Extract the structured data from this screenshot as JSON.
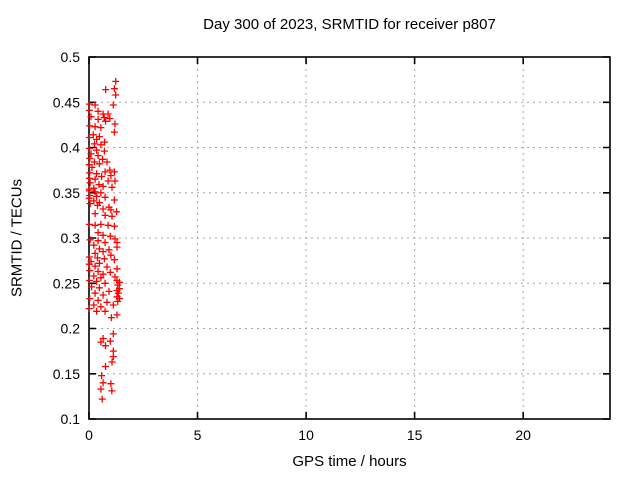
{
  "window": {
    "background": "#ffffff"
  },
  "chart_data": {
    "type": "scatter",
    "title": "Day 300 of 2023, SRMTID for receiver p807",
    "xlabel": "GPS time / hours",
    "ylabel": "SRMTID / TECUs",
    "xlim": [
      0,
      24
    ],
    "ylim": [
      0.1,
      0.5
    ],
    "xticks": {
      "values": [
        0,
        5,
        10,
        15,
        20
      ],
      "labels": [
        "0",
        "5",
        "10",
        "15",
        "20"
      ]
    },
    "yticks": {
      "values": [
        0.1,
        0.15,
        0.2,
        0.25,
        0.3,
        0.35,
        0.4,
        0.45,
        0.5
      ],
      "labels": [
        "0.1",
        "0.15",
        "0.2",
        "0.25",
        "0.3",
        "0.35",
        "0.4",
        "0.45",
        "0.5"
      ]
    },
    "grid": true,
    "legend": "none",
    "marker": {
      "shape": "plus",
      "color": "#ff0000",
      "size": 7
    },
    "grid_color": "#a8a8a8",
    "axis_color": "#000000",
    "series": [
      {
        "name": "SRMTID",
        "points": [
          [
            1.23,
            0.473
          ],
          [
            0.77,
            0.464
          ],
          [
            1.17,
            0.465
          ],
          [
            1.23,
            0.458
          ],
          [
            0.02,
            0.448
          ],
          [
            0.28,
            0.447
          ],
          [
            1.12,
            0.447
          ],
          [
            0.02,
            0.441
          ],
          [
            0.42,
            0.44
          ],
          [
            0.65,
            0.437
          ],
          [
            0.88,
            0.437
          ],
          [
            0.09,
            0.434
          ],
          [
            0.7,
            0.433
          ],
          [
            0.96,
            0.432
          ],
          [
            0.42,
            0.431
          ],
          [
            0.76,
            0.429
          ],
          [
            1.2,
            0.426
          ],
          [
            0.03,
            0.424
          ],
          [
            0.28,
            0.423
          ],
          [
            0.55,
            0.422
          ],
          [
            1.17,
            0.417
          ],
          [
            0.2,
            0.414
          ],
          [
            0.48,
            0.412
          ],
          [
            0.02,
            0.411
          ],
          [
            0.35,
            0.409
          ],
          [
            0.72,
            0.406
          ],
          [
            0.25,
            0.404
          ],
          [
            0.55,
            0.403
          ],
          [
            0.02,
            0.399
          ],
          [
            0.35,
            0.397
          ],
          [
            0.71,
            0.396
          ],
          [
            0.09,
            0.393
          ],
          [
            0.42,
            0.391
          ],
          [
            0.03,
            0.388
          ],
          [
            0.62,
            0.387
          ],
          [
            0.25,
            0.384
          ],
          [
            0.83,
            0.384
          ],
          [
            0.48,
            0.382
          ],
          [
            0.01,
            0.381
          ],
          [
            0.14,
            0.378
          ],
          [
            0.96,
            0.375
          ],
          [
            0.74,
            0.373
          ],
          [
            1.17,
            0.373
          ],
          [
            0.03,
            0.372
          ],
          [
            0.35,
            0.371
          ],
          [
            1.01,
            0.369
          ],
          [
            0.58,
            0.368
          ],
          [
            0.02,
            0.366
          ],
          [
            0.28,
            0.365
          ],
          [
            0.88,
            0.363
          ],
          [
            1.2,
            0.363
          ],
          [
            0.05,
            0.361
          ],
          [
            0.46,
            0.359
          ],
          [
            0.65,
            0.357
          ],
          [
            1.06,
            0.356
          ],
          [
            0.22,
            0.355
          ],
          [
            0.01,
            0.354
          ],
          [
            0.02,
            0.352
          ],
          [
            0.28,
            0.351
          ],
          [
            0.55,
            0.35
          ],
          [
            0.03,
            0.347
          ],
          [
            0.35,
            0.346
          ],
          [
            0.01,
            0.344
          ],
          [
            0.74,
            0.345
          ],
          [
            1.17,
            0.342
          ],
          [
            0.22,
            0.341
          ],
          [
            0.48,
            0.339
          ],
          [
            0.05,
            0.338
          ],
          [
            0.39,
            0.336
          ],
          [
            0.92,
            0.334
          ],
          [
            0.65,
            0.332
          ],
          [
            1.01,
            0.331
          ],
          [
            1.27,
            0.329
          ],
          [
            0.28,
            0.327
          ],
          [
            0.74,
            0.325
          ],
          [
            1.06,
            0.324
          ],
          [
            0.02,
            0.315
          ],
          [
            0.28,
            0.314
          ],
          [
            0.55,
            0.315
          ],
          [
            0.88,
            0.314
          ],
          [
            1.17,
            0.313
          ],
          [
            0.42,
            0.306
          ],
          [
            0.65,
            0.303
          ],
          [
            0.98,
            0.302
          ],
          [
            1.2,
            0.299
          ],
          [
            0.05,
            0.298
          ],
          [
            0.42,
            0.297
          ],
          [
            0.74,
            0.295
          ],
          [
            1.29,
            0.295
          ],
          [
            0.22,
            0.292
          ],
          [
            1.29,
            0.29
          ],
          [
            0.48,
            0.288
          ],
          [
            0.92,
            0.287
          ],
          [
            0.65,
            0.285
          ],
          [
            0.28,
            0.283
          ],
          [
            1.01,
            0.281
          ],
          [
            0.02,
            0.279
          ],
          [
            0.39,
            0.278
          ],
          [
            0.71,
            0.277
          ],
          [
            1.17,
            0.276
          ],
          [
            0.09,
            0.274
          ],
          [
            0.48,
            0.272
          ],
          [
            0.01,
            0.271
          ],
          [
            0.28,
            0.269
          ],
          [
            0.83,
            0.268
          ],
          [
            1.29,
            0.266
          ],
          [
            0.03,
            0.264
          ],
          [
            0.42,
            0.263
          ],
          [
            0.98,
            0.262
          ],
          [
            0.65,
            0.26
          ],
          [
            0.22,
            0.258
          ],
          [
            1.2,
            0.257
          ],
          [
            0.55,
            0.256
          ],
          [
            0.02,
            0.253
          ],
          [
            0.35,
            0.252
          ],
          [
            1.29,
            0.253
          ],
          [
            1.4,
            0.251
          ],
          [
            0.74,
            0.25
          ],
          [
            1.32,
            0.248
          ],
          [
            0.12,
            0.246
          ],
          [
            0.48,
            0.245
          ],
          [
            1.4,
            0.244
          ],
          [
            1.29,
            0.242
          ],
          [
            0.92,
            0.241
          ],
          [
            0.28,
            0.239
          ],
          [
            1.35,
            0.239
          ],
          [
            0.65,
            0.237
          ],
          [
            1.29,
            0.235
          ],
          [
            0.03,
            0.233
          ],
          [
            1.4,
            0.233
          ],
          [
            0.42,
            0.231
          ],
          [
            1.32,
            0.23
          ],
          [
            0.83,
            0.229
          ],
          [
            0.22,
            0.226
          ],
          [
            1.12,
            0.226
          ],
          [
            0.55,
            0.224
          ],
          [
            0.01,
            0.222
          ],
          [
            0.35,
            0.219
          ],
          [
            0.74,
            0.219
          ],
          [
            1.29,
            0.215
          ],
          [
            1.03,
            0.212
          ],
          [
            1.12,
            0.194
          ],
          [
            0.65,
            0.189
          ],
          [
            0.98,
            0.186
          ],
          [
            0.55,
            0.185
          ],
          [
            0.76,
            0.181
          ],
          [
            1.12,
            0.175
          ],
          [
            1.12,
            0.169
          ],
          [
            1.06,
            0.163
          ],
          [
            0.76,
            0.158
          ],
          [
            0.58,
            0.148
          ],
          [
            0.65,
            0.14
          ],
          [
            1.01,
            0.139
          ],
          [
            0.55,
            0.133
          ],
          [
            1.05,
            0.131
          ],
          [
            0.61,
            0.122
          ]
        ]
      }
    ]
  }
}
